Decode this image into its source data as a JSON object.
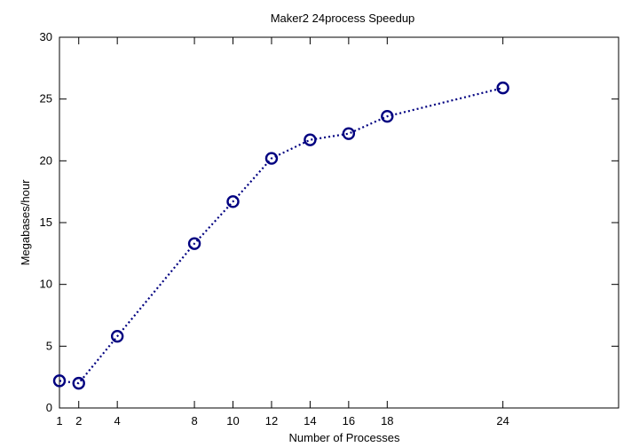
{
  "chart_data": {
    "type": "line",
    "title": "Maker2 24process Speedup",
    "xlabel": "Number of Processes",
    "ylabel": "Megabases/hour",
    "xlim": [
      1,
      30
    ],
    "ylim": [
      0,
      30
    ],
    "xticks": [
      1,
      2,
      4,
      8,
      10,
      12,
      14,
      16,
      18,
      24
    ],
    "yticks": [
      0,
      5,
      10,
      15,
      20,
      25,
      30
    ],
    "grid": false,
    "series": [
      {
        "color": "#000080",
        "line_style": "dotted",
        "marker": "circle",
        "x": [
          1,
          2,
          4,
          8,
          10,
          12,
          14,
          16,
          18,
          24
        ],
        "y": [
          2.2,
          2.0,
          5.8,
          13.3,
          16.7,
          20.2,
          21.7,
          22.2,
          23.6,
          25.9
        ]
      }
    ]
  }
}
